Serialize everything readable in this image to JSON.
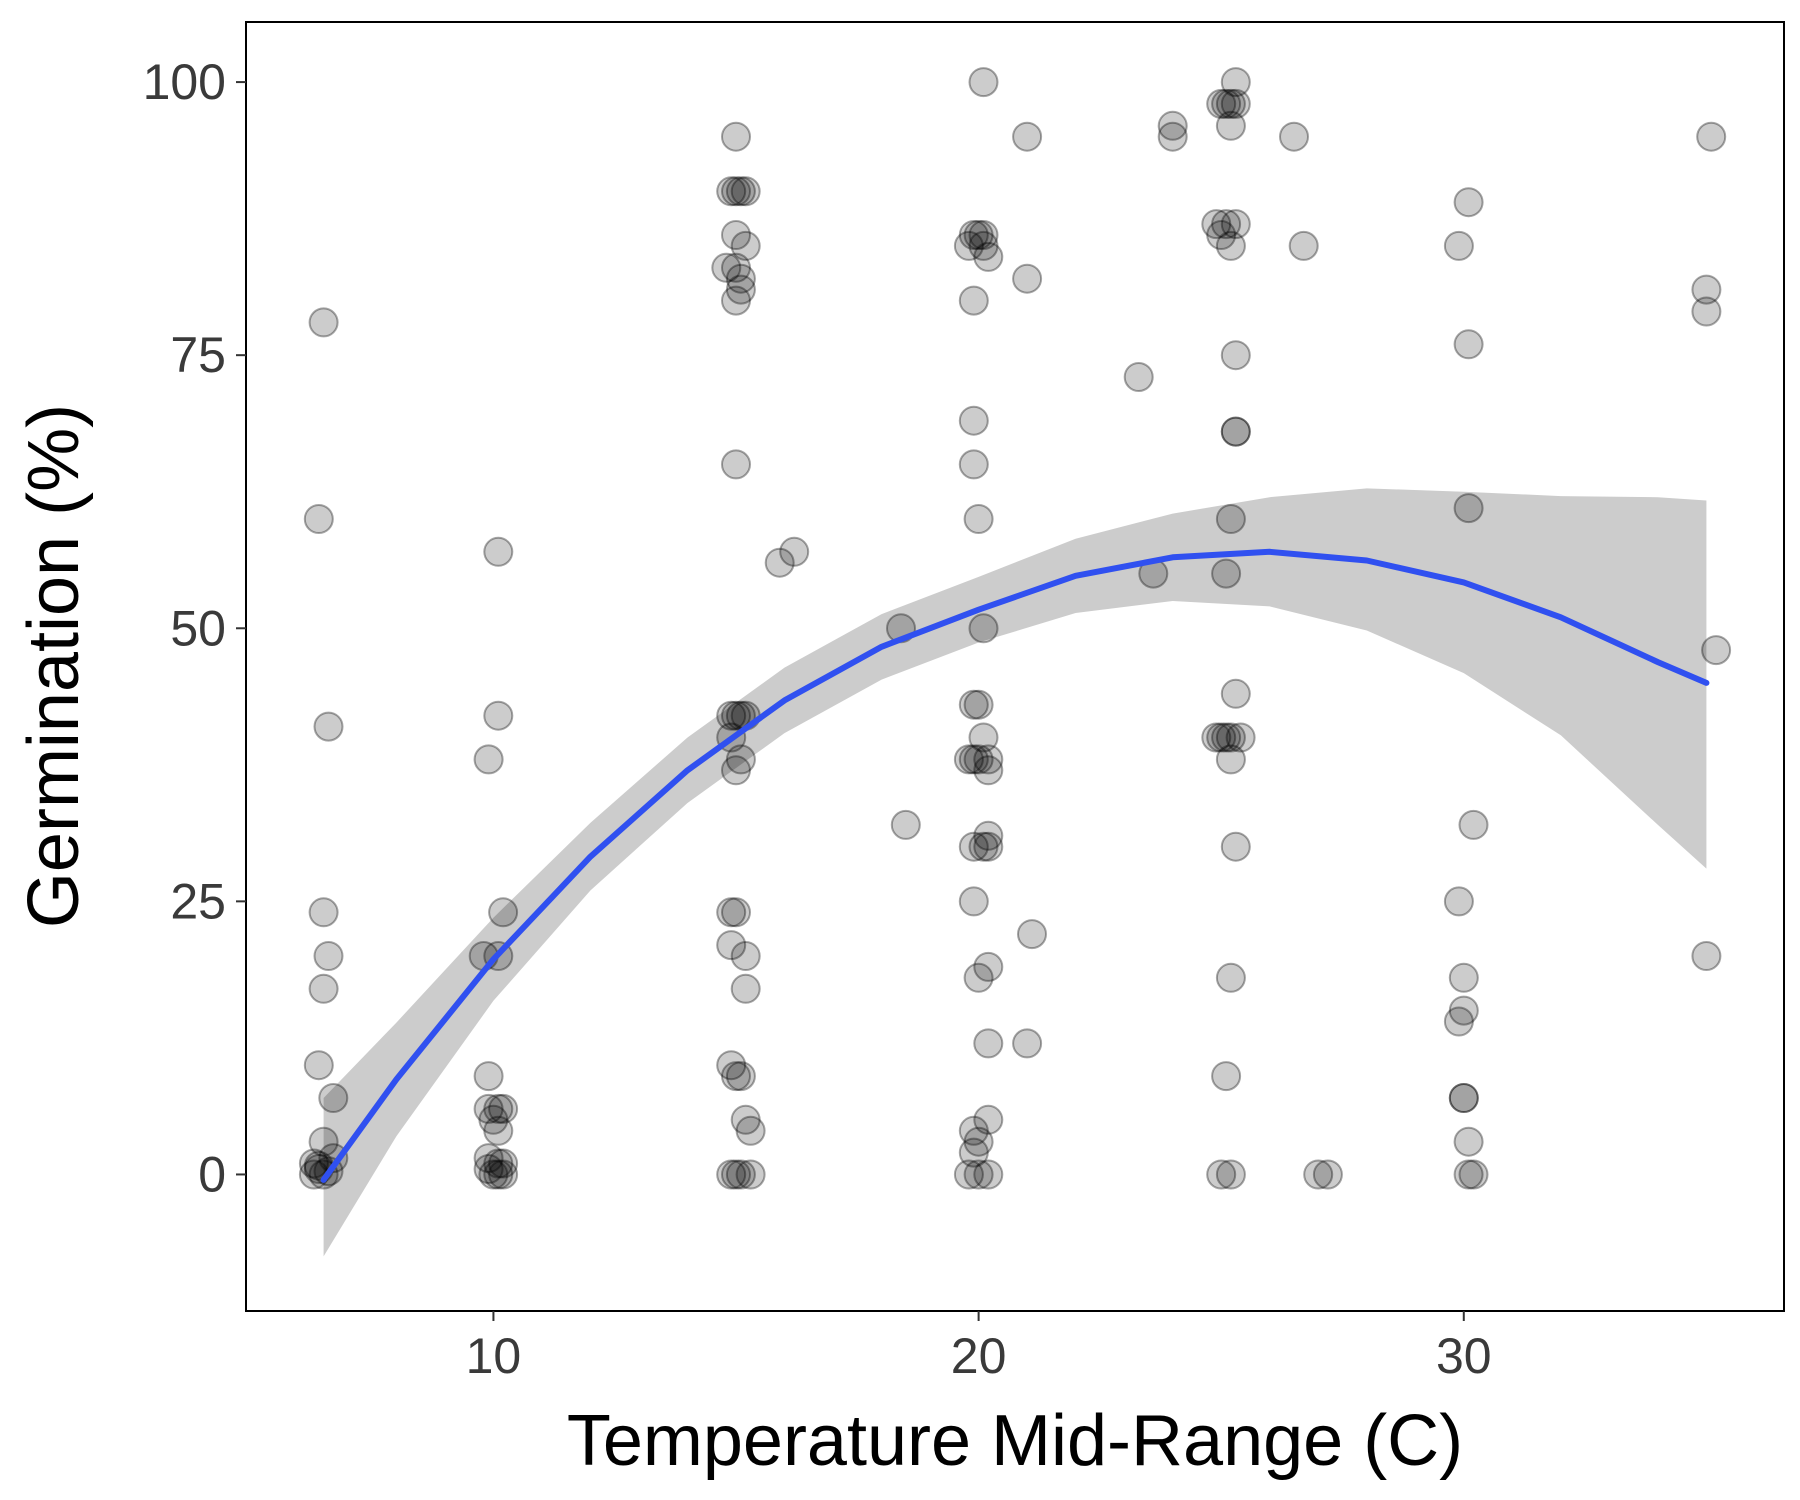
{
  "chart_data": {
    "type": "scatter",
    "title": "",
    "xlabel": "Temperature Mid-Range (C)",
    "ylabel": "Germination (%)",
    "xlim": [
      4.9,
      36.6
    ],
    "ylim": [
      -12.5,
      105.5
    ],
    "xticks": [
      10,
      20,
      30
    ],
    "yticks": [
      0,
      25,
      50,
      75,
      100
    ],
    "xtick_labels": [
      "10",
      "20",
      "30"
    ],
    "ytick_labels": [
      "0",
      "25",
      "50",
      "75",
      "100"
    ],
    "grid": false,
    "legend": "none",
    "colors": {
      "points": "#000000",
      "point_opacity": 0.2,
      "fit_line": "#3050f0",
      "ribbon": "#cccccc"
    },
    "points": [
      [
        6.5,
        78
      ],
      [
        6.4,
        60
      ],
      [
        6.6,
        41
      ],
      [
        6.5,
        24
      ],
      [
        6.6,
        20
      ],
      [
        6.5,
        17
      ],
      [
        6.4,
        10
      ],
      [
        6.7,
        7
      ],
      [
        6.5,
        3
      ],
      [
        6.3,
        1
      ],
      [
        6.4,
        0.5
      ],
      [
        6.5,
        0
      ],
      [
        6.6,
        0.3
      ],
      [
        6.4,
        0.8
      ],
      [
        6.7,
        1.5
      ],
      [
        6.3,
        0
      ],
      [
        10.1,
        57
      ],
      [
        10.1,
        42
      ],
      [
        9.9,
        38
      ],
      [
        10.2,
        24
      ],
      [
        9.8,
        20
      ],
      [
        10.1,
        20
      ],
      [
        9.9,
        9
      ],
      [
        9.9,
        6
      ],
      [
        10.1,
        6
      ],
      [
        10.2,
        6
      ],
      [
        10.0,
        5
      ],
      [
        10.1,
        4
      ],
      [
        9.9,
        1.5
      ],
      [
        10.1,
        1
      ],
      [
        10.2,
        1
      ],
      [
        9.9,
        0.5
      ],
      [
        10.0,
        0
      ],
      [
        10.1,
        0
      ],
      [
        10.2,
        0
      ],
      [
        15.0,
        95
      ],
      [
        14.9,
        90
      ],
      [
        15.0,
        90
      ],
      [
        15.1,
        90
      ],
      [
        15.2,
        90
      ],
      [
        15.0,
        86
      ],
      [
        15.2,
        85
      ],
      [
        14.8,
        83
      ],
      [
        15.0,
        83
      ],
      [
        15.1,
        82
      ],
      [
        15.1,
        81
      ],
      [
        15.0,
        80
      ],
      [
        15.0,
        65
      ],
      [
        14.9,
        42
      ],
      [
        15.0,
        42
      ],
      [
        15.1,
        42
      ],
      [
        15.2,
        42
      ],
      [
        14.9,
        40
      ],
      [
        15.1,
        38
      ],
      [
        15.0,
        37
      ],
      [
        14.9,
        24
      ],
      [
        15.0,
        24
      ],
      [
        14.9,
        21
      ],
      [
        15.2,
        20
      ],
      [
        15.2,
        17
      ],
      [
        14.9,
        10
      ],
      [
        15.0,
        9
      ],
      [
        15.1,
        9
      ],
      [
        15.2,
        5
      ],
      [
        15.3,
        4
      ],
      [
        14.9,
        0
      ],
      [
        15.0,
        0
      ],
      [
        15.1,
        0
      ],
      [
        15.3,
        0
      ],
      [
        15.9,
        56
      ],
      [
        16.2,
        57
      ],
      [
        18.4,
        50
      ],
      [
        18.5,
        32
      ],
      [
        20.1,
        100
      ],
      [
        19.9,
        86
      ],
      [
        20.0,
        86
      ],
      [
        20.1,
        86
      ],
      [
        19.8,
        85
      ],
      [
        20.1,
        85
      ],
      [
        20.2,
        84
      ],
      [
        19.9,
        80
      ],
      [
        19.9,
        69
      ],
      [
        19.9,
        65
      ],
      [
        20.0,
        60
      ],
      [
        20.1,
        50
      ],
      [
        19.9,
        43
      ],
      [
        20.0,
        43
      ],
      [
        20.1,
        40
      ],
      [
        19.8,
        38
      ],
      [
        19.9,
        38
      ],
      [
        20.0,
        38
      ],
      [
        20.2,
        38
      ],
      [
        20.2,
        37
      ],
      [
        20.2,
        31
      ],
      [
        19.9,
        30
      ],
      [
        20.2,
        30
      ],
      [
        20.1,
        30
      ],
      [
        19.9,
        25
      ],
      [
        20.2,
        19
      ],
      [
        20.0,
        18
      ],
      [
        20.2,
        12
      ],
      [
        20.2,
        5
      ],
      [
        19.9,
        4
      ],
      [
        20.0,
        3
      ],
      [
        19.9,
        2
      ],
      [
        19.8,
        0
      ],
      [
        20.0,
        0
      ],
      [
        20.2,
        0
      ],
      [
        21.0,
        95
      ],
      [
        21.0,
        82
      ],
      [
        21.1,
        22
      ],
      [
        21.0,
        12
      ],
      [
        23.3,
        73
      ],
      [
        23.6,
        55
      ],
      [
        24.0,
        96
      ],
      [
        24.0,
        95
      ],
      [
        25.0,
        98
      ],
      [
        25.1,
        98
      ],
      [
        25.2,
        98
      ],
      [
        25.3,
        98
      ],
      [
        25.3,
        100
      ],
      [
        25.2,
        96
      ],
      [
        24.9,
        87
      ],
      [
        25.1,
        87
      ],
      [
        25.3,
        87
      ],
      [
        25.0,
        86
      ],
      [
        25.2,
        85
      ],
      [
        25.3,
        75
      ],
      [
        25.3,
        68
      ],
      [
        25.3,
        68
      ],
      [
        25.2,
        60
      ],
      [
        25.1,
        55
      ],
      [
        25.3,
        44
      ],
      [
        24.9,
        40
      ],
      [
        25.0,
        40
      ],
      [
        25.1,
        40
      ],
      [
        25.2,
        40
      ],
      [
        25.4,
        40
      ],
      [
        25.2,
        38
      ],
      [
        25.3,
        30
      ],
      [
        25.2,
        18
      ],
      [
        25.1,
        9
      ],
      [
        25.0,
        0
      ],
      [
        25.2,
        0
      ],
      [
        26.5,
        95
      ],
      [
        26.7,
        85
      ],
      [
        27.0,
        0
      ],
      [
        27.2,
        0
      ],
      [
        30.1,
        89
      ],
      [
        29.9,
        85
      ],
      [
        30.1,
        76
      ],
      [
        30.1,
        61
      ],
      [
        30.2,
        32
      ],
      [
        29.9,
        25
      ],
      [
        30.0,
        18
      ],
      [
        30.0,
        15
      ],
      [
        29.9,
        14
      ],
      [
        30.0,
        7
      ],
      [
        30.0,
        7
      ],
      [
        30.1,
        3
      ],
      [
        30.1,
        0
      ],
      [
        30.2,
        0
      ],
      [
        35.1,
        95
      ],
      [
        35.0,
        81
      ],
      [
        35.0,
        79
      ],
      [
        35.2,
        48
      ],
      [
        35.0,
        20
      ]
    ],
    "fit_line": {
      "x": [
        6.5,
        8,
        10,
        12,
        14,
        16,
        18,
        20,
        22,
        24,
        26,
        28,
        30,
        32,
        34,
        35
      ],
      "y": [
        -0.5,
        8.7,
        19.7,
        29.1,
        37.0,
        43.4,
        48.3,
        51.7,
        54.8,
        56.5,
        57.0,
        56.2,
        54.2,
        51.0,
        46.9,
        45.0
      ]
    },
    "ribbon": {
      "x": [
        6.5,
        8,
        10,
        12,
        14,
        16,
        18,
        20,
        22,
        24,
        26,
        28,
        30,
        32,
        34,
        35
      ],
      "lower": [
        -7.5,
        3.5,
        15.9,
        26.0,
        34.0,
        40.4,
        45.3,
        48.7,
        51.4,
        52.5,
        52.0,
        49.8,
        45.9,
        40.2,
        32.0,
        28.0
      ],
      "upper": [
        7.0,
        13.9,
        23.5,
        32.2,
        40.0,
        46.4,
        51.3,
        54.7,
        58.2,
        60.5,
        62.0,
        62.8,
        62.5,
        62.1,
        62.0,
        61.7
      ]
    }
  }
}
